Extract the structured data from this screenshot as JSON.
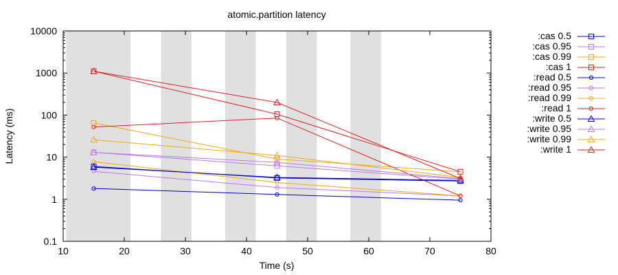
{
  "chart_data": {
    "type": "line",
    "title": "atomic.partition latency",
    "xlabel": "Time (s)",
    "ylabel": "Latency (ms)",
    "xlim": [
      10,
      80
    ],
    "ylim": [
      0.1,
      10000
    ],
    "yscale": "log",
    "xticks": [
      10,
      20,
      30,
      40,
      50,
      60,
      70,
      80
    ],
    "yticks": [
      {
        "v": 0.1,
        "label": "0.1"
      },
      {
        "v": 1,
        "label": "1"
      },
      {
        "v": 10,
        "label": "10"
      },
      {
        "v": 100,
        "label": "100"
      },
      {
        "v": 1000,
        "label": "1000"
      },
      {
        "v": 10000,
        "label": "10000"
      }
    ],
    "shaded_intervals": [
      [
        10.5,
        15.5
      ],
      [
        15.5,
        21
      ],
      [
        26,
        31
      ],
      [
        36.5,
        41.5
      ],
      [
        46.5,
        51.5
      ],
      [
        57,
        62
      ]
    ],
    "shaded_color": "#e0e0e0",
    "legend_position": "outside-right",
    "series": [
      {
        "name": ":cas 0.5",
        "color": "#0000cc",
        "marker": "square",
        "x": [
          15,
          45,
          75
        ],
        "y": [
          6,
          3.2,
          2.7
        ]
      },
      {
        "name": ":cas 0.95",
        "color": "#bb77ee",
        "marker": "square",
        "x": [
          15,
          45,
          75
        ],
        "y": [
          13,
          6.2,
          3
        ]
      },
      {
        "name": ":cas 0.99",
        "color": "#eeaa11",
        "marker": "square",
        "x": [
          15,
          45,
          75
        ],
        "y": [
          65,
          9,
          4.5
        ]
      },
      {
        "name": ":cas 1",
        "color": "#dd2222",
        "marker": "square",
        "x": [
          15,
          45,
          75
        ],
        "y": [
          1100,
          105,
          4.5
        ]
      },
      {
        "name": ":read 0.5",
        "color": "#0000cc",
        "marker": "circle",
        "x": [
          15,
          45,
          75
        ],
        "y": [
          1.8,
          1.3,
          0.95
        ]
      },
      {
        "name": ":read 0.95",
        "color": "#bb77ee",
        "marker": "circle",
        "x": [
          15,
          45,
          75
        ],
        "y": [
          4.6,
          1.9,
          1.2
        ]
      },
      {
        "name": ":read 0.99",
        "color": "#eeaa11",
        "marker": "circle",
        "x": [
          15,
          45,
          75
        ],
        "y": [
          7.8,
          2.5,
          1.2
        ]
      },
      {
        "name": ":read 1",
        "color": "#dd2222",
        "marker": "circle",
        "x": [
          15,
          45,
          75
        ],
        "y": [
          52,
          85,
          1.2
        ]
      },
      {
        "name": ":write 0.5",
        "color": "#0000cc",
        "marker": "triangle",
        "x": [
          15,
          45,
          75
        ],
        "y": [
          5.8,
          3.3,
          2.8
        ]
      },
      {
        "name": ":write 0.95",
        "color": "#bb77ee",
        "marker": "triangle",
        "x": [
          15,
          45,
          75
        ],
        "y": [
          13,
          7.5,
          3.1
        ]
      },
      {
        "name": ":write 0.99",
        "color": "#eeaa11",
        "marker": "triangle",
        "x": [
          15,
          45,
          75
        ],
        "y": [
          26,
          11,
          3.3
        ]
      },
      {
        "name": ":write 1",
        "color": "#dd2222",
        "marker": "triangle",
        "x": [
          15,
          45,
          75
        ],
        "y": [
          1100,
          200,
          3.1
        ]
      }
    ]
  }
}
